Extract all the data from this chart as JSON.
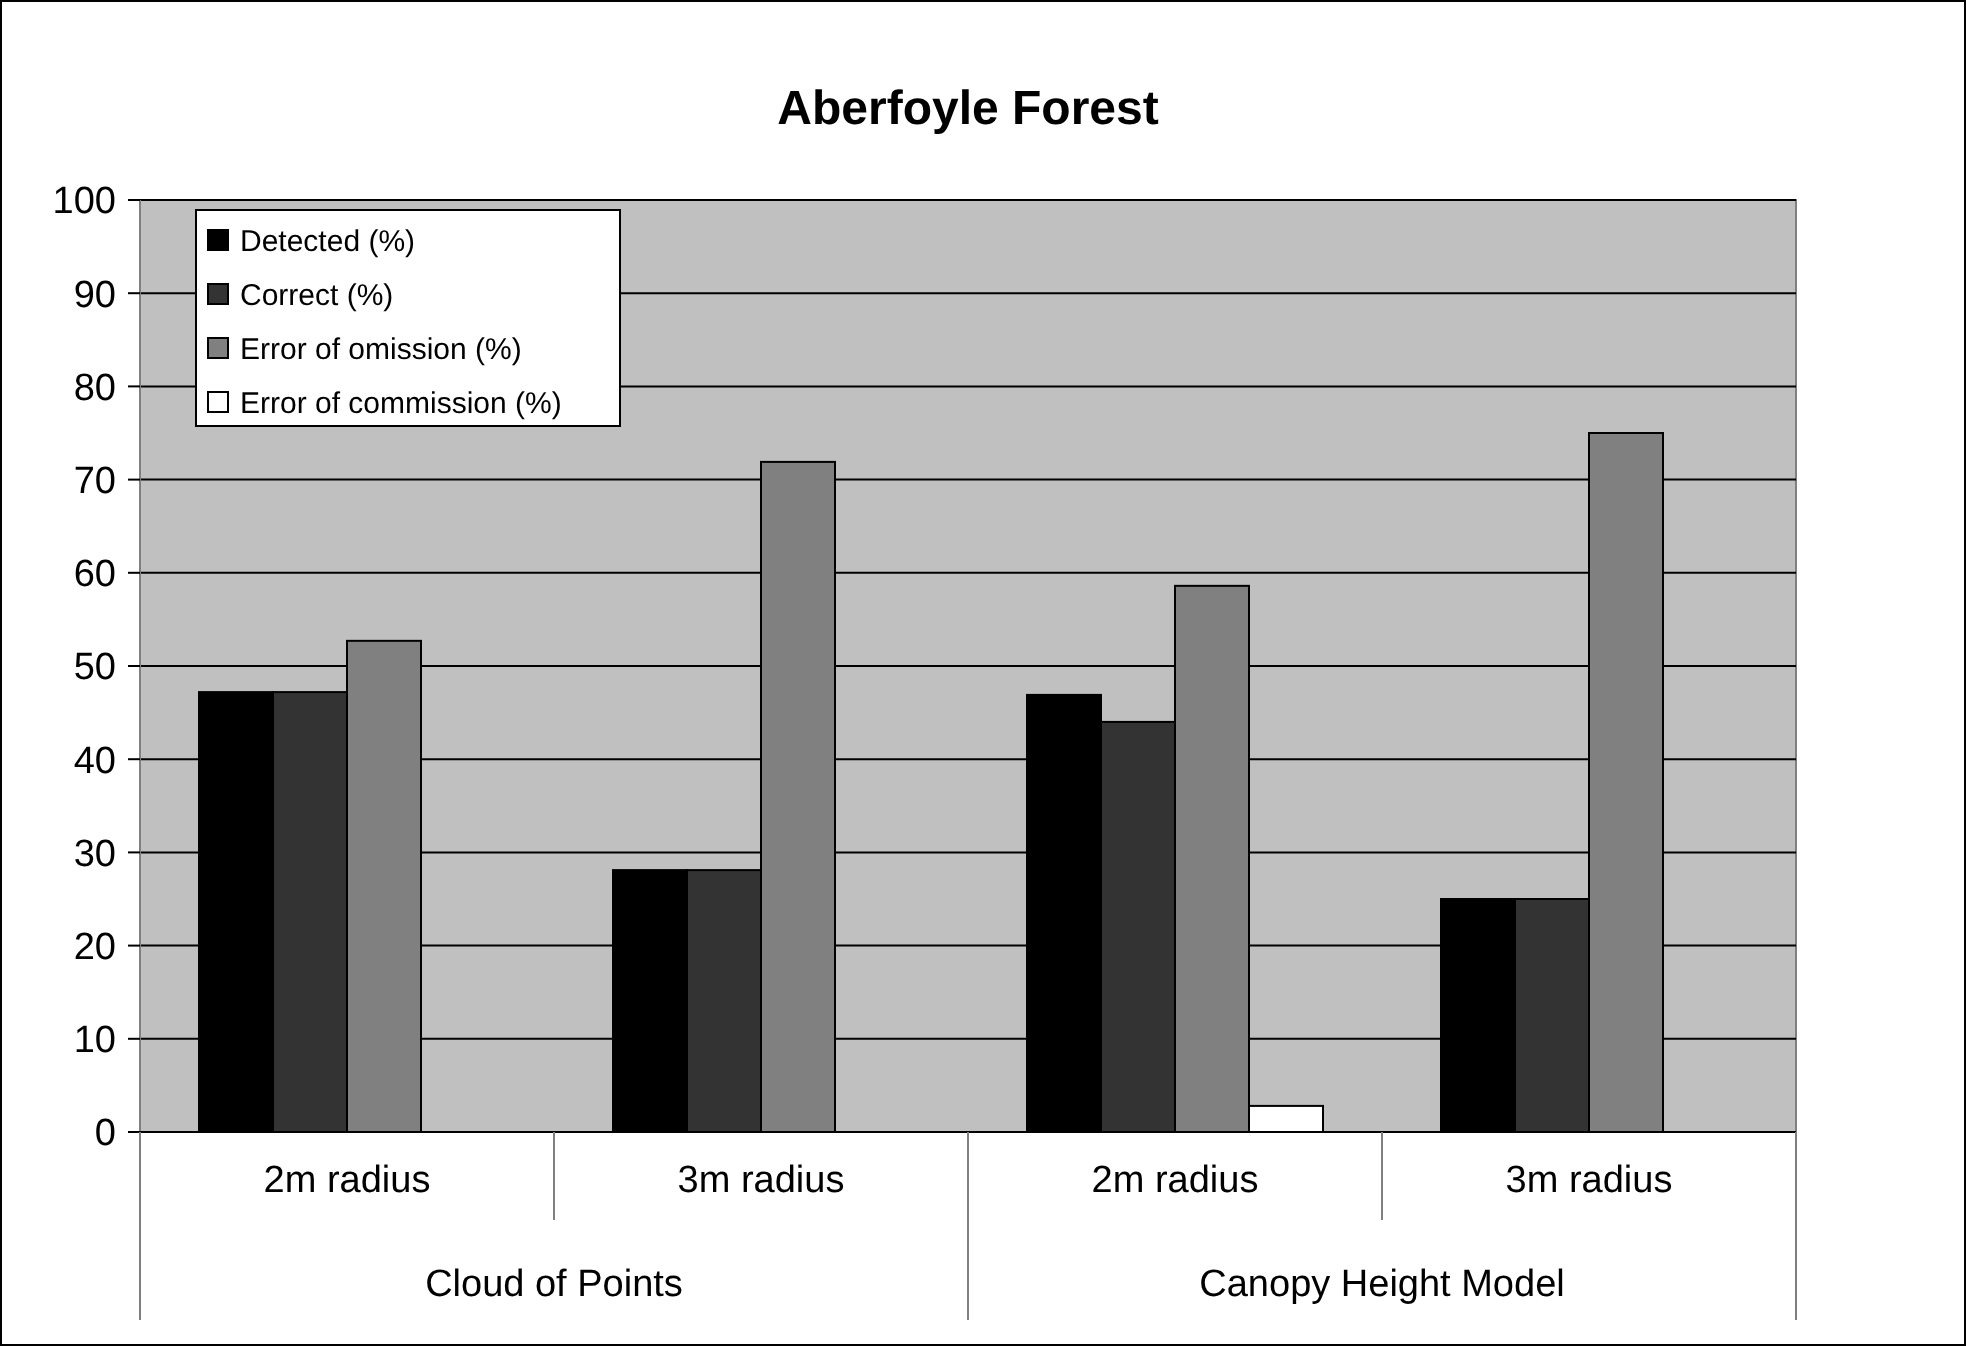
{
  "chart_data": {
    "type": "bar",
    "title": "Aberfoyle Forest",
    "categories": [
      "2m radius",
      "3m radius",
      "2m radius",
      "3m radius"
    ],
    "annotations": [
      "Cloud of Points",
      "Canopy Height Model"
    ],
    "series": [
      {
        "name": "Detected (%)",
        "color": "#000000",
        "values": [
          47.2,
          28.1,
          46.9,
          25
        ]
      },
      {
        "name": "Correct (%)",
        "color": "#333333",
        "values": [
          47.2,
          28.1,
          44,
          25
        ]
      },
      {
        "name": "Error of omission (%)",
        "color": "#808080",
        "values": [
          52.7,
          71.9,
          58.6,
          75
        ]
      },
      {
        "name": "Error of commission (%)",
        "color": "#ffffff",
        "values": [
          0,
          0,
          2.8,
          0
        ]
      }
    ],
    "ylim": [
      0,
      100
    ],
    "yticks": [
      0,
      10,
      20,
      30,
      40,
      50,
      60,
      70,
      80,
      90,
      100
    ],
    "grid": "y",
    "legend": "top left"
  }
}
